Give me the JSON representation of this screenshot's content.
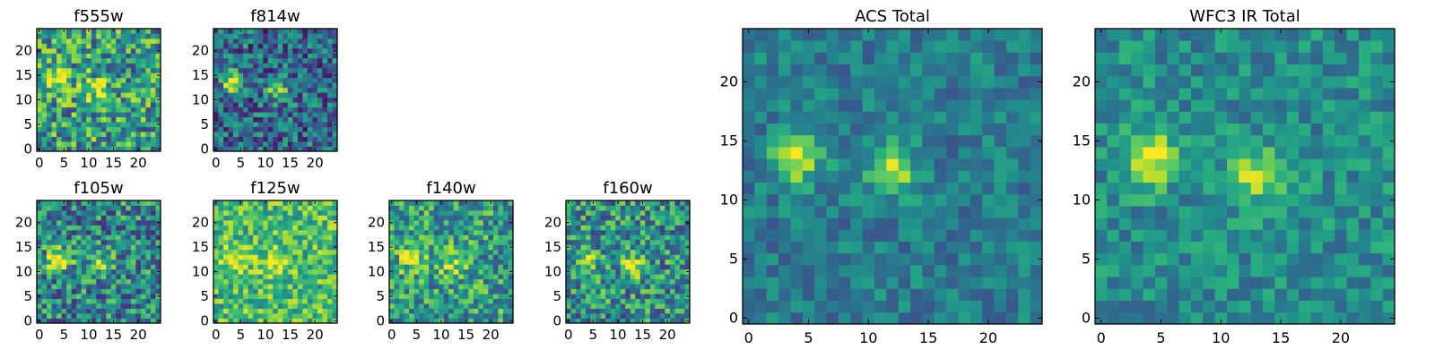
{
  "figure": {
    "colormap": [
      "#440154",
      "#472f7d",
      "#3b528b",
      "#2c728e",
      "#21918c",
      "#28ae80",
      "#5ec962",
      "#addc30",
      "#fde725"
    ]
  },
  "chart_data": [
    {
      "type": "heatmap",
      "title": "f555w",
      "x_ticks": [
        0,
        5,
        10,
        15,
        20
      ],
      "y_ticks": [
        0,
        5,
        10,
        15,
        20
      ],
      "xlim": [
        -0.5,
        24.5
      ],
      "ylim": [
        -0.5,
        24.5
      ],
      "grid_size": 25,
      "noise": 0.35,
      "background": 0.55,
      "sources": [
        {
          "x": 3.5,
          "y": 13.5,
          "amplitude": 0.45,
          "sigma": 1.8
        },
        {
          "x": 12,
          "y": 12,
          "amplitude": 0.3,
          "sigma": 2.0
        }
      ],
      "seed": 11
    },
    {
      "type": "heatmap",
      "title": "f814w",
      "x_ticks": [
        0,
        5,
        10,
        15,
        20
      ],
      "y_ticks": [
        0,
        5,
        10,
        15,
        20
      ],
      "xlim": [
        -0.5,
        24.5
      ],
      "ylim": [
        -0.5,
        24.5
      ],
      "grid_size": 25,
      "noise": 0.3,
      "background": 0.35,
      "sources": [
        {
          "x": 3.5,
          "y": 13.5,
          "amplitude": 0.65,
          "sigma": 1.5
        },
        {
          "x": 12.5,
          "y": 12,
          "amplitude": 0.45,
          "sigma": 1.6
        }
      ],
      "seed": 23
    },
    {
      "type": "heatmap",
      "title": "f105w",
      "x_ticks": [
        0,
        5,
        10,
        15,
        20
      ],
      "y_ticks": [
        0,
        5,
        10,
        15,
        20
      ],
      "xlim": [
        -0.5,
        24.5
      ],
      "ylim": [
        -0.5,
        24.5
      ],
      "grid_size": 25,
      "noise": 0.33,
      "background": 0.45,
      "sources": [
        {
          "x": 4,
          "y": 12.5,
          "amplitude": 0.5,
          "sigma": 1.8
        },
        {
          "x": 12.5,
          "y": 11.5,
          "amplitude": 0.35,
          "sigma": 1.8
        }
      ],
      "seed": 37
    },
    {
      "type": "heatmap",
      "title": "f125w",
      "x_ticks": [
        0,
        5,
        10,
        15,
        20
      ],
      "y_ticks": [
        0,
        5,
        10,
        15,
        20
      ],
      "xlim": [
        -0.5,
        24.5
      ],
      "ylim": [
        -0.5,
        24.5
      ],
      "grid_size": 25,
      "noise": 0.25,
      "background": 0.68,
      "sources": [
        {
          "x": 4,
          "y": 12.5,
          "amplitude": 0.25,
          "sigma": 2.0
        },
        {
          "x": 12,
          "y": 12,
          "amplitude": 0.25,
          "sigma": 2.0
        }
      ],
      "seed": 41
    },
    {
      "type": "heatmap",
      "title": "f140w",
      "x_ticks": [
        0,
        5,
        10,
        15,
        20
      ],
      "y_ticks": [
        0,
        5,
        10,
        15,
        20
      ],
      "xlim": [
        -0.5,
        24.5
      ],
      "ylim": [
        -0.5,
        24.5
      ],
      "grid_size": 25,
      "noise": 0.3,
      "background": 0.55,
      "sources": [
        {
          "x": 4,
          "y": 13,
          "amplitude": 0.35,
          "sigma": 1.9
        },
        {
          "x": 12.5,
          "y": 11.5,
          "amplitude": 0.3,
          "sigma": 1.9
        }
      ],
      "seed": 53
    },
    {
      "type": "heatmap",
      "title": "f160w",
      "x_ticks": [
        0,
        5,
        10,
        15,
        20
      ],
      "y_ticks": [
        0,
        5,
        10,
        15,
        20
      ],
      "xlim": [
        -0.5,
        24.5
      ],
      "ylim": [
        -0.5,
        24.5
      ],
      "grid_size": 25,
      "noise": 0.32,
      "background": 0.5,
      "sources": [
        {
          "x": 3.5,
          "y": 13,
          "amplitude": 0.4,
          "sigma": 1.7
        },
        {
          "x": 13,
          "y": 11.5,
          "amplitude": 0.4,
          "sigma": 1.7
        }
      ],
      "seed": 67
    },
    {
      "type": "heatmap",
      "title": "ACS Total",
      "x_ticks": [
        0,
        5,
        10,
        15,
        20
      ],
      "y_ticks": [
        0,
        5,
        10,
        15,
        20
      ],
      "xlim": [
        -0.5,
        24.5
      ],
      "ylim": [
        -0.5,
        24.5
      ],
      "grid_size": 25,
      "noise": 0.16,
      "background": 0.42,
      "sources": [
        {
          "x": 4,
          "y": 13.5,
          "amplitude": 0.55,
          "sigma": 1.4
        },
        {
          "x": 12,
          "y": 12.5,
          "amplitude": 0.42,
          "sigma": 1.5
        }
      ],
      "seed": 79
    },
    {
      "type": "heatmap",
      "title": "WFC3 IR Total",
      "x_ticks": [
        0,
        5,
        10,
        15,
        20
      ],
      "y_ticks": [
        0,
        5,
        10,
        15,
        20
      ],
      "xlim": [
        -0.5,
        24.5
      ],
      "ylim": [
        -0.5,
        24.5
      ],
      "grid_size": 25,
      "noise": 0.17,
      "background": 0.48,
      "sources": [
        {
          "x": 4,
          "y": 13.5,
          "amplitude": 0.5,
          "sigma": 1.6
        },
        {
          "x": 13,
          "y": 12,
          "amplitude": 0.42,
          "sigma": 1.6
        }
      ],
      "seed": 97
    }
  ]
}
